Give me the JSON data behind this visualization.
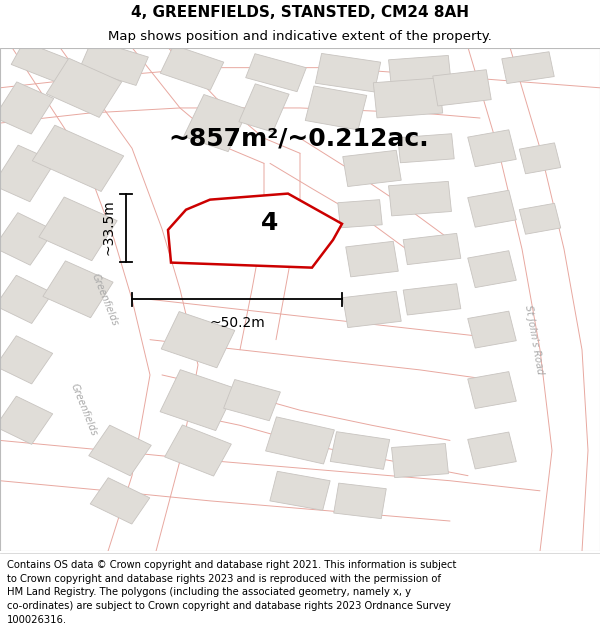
{
  "title": "4, GREENFIELDS, STANSTED, CM24 8AH",
  "subtitle": "Map shows position and indicative extent of the property.",
  "area_text": "~857m²/~0.212ac.",
  "label_number": "4",
  "width_label": "~50.2m",
  "height_label": "~33.5m",
  "footer_text": "Contains OS data © Crown copyright and database right 2021. This information is subject to Crown copyright and database rights 2023 and is reproduced with the permission of HM Land Registry. The polygons (including the associated geometry, namely x, y co-ordinates) are subject to Crown copyright and database rights 2023 Ordnance Survey 100026316.",
  "map_bg": "#f7f4f2",
  "building_fill": "#e0ddd8",
  "building_edge": "#c8c4c0",
  "road_line_color": "#e8a8a0",
  "red_line_color": "#cc0000",
  "property_fill": "#f0eeec",
  "title_fontsize": 11,
  "subtitle_fontsize": 9.5,
  "area_fontsize": 18,
  "footer_fontsize": 7.2,
  "label_fontsize": 18,
  "dim_fontsize": 10,
  "road_label_color": "#aaaaaa",
  "road_label_fontsize": 7
}
